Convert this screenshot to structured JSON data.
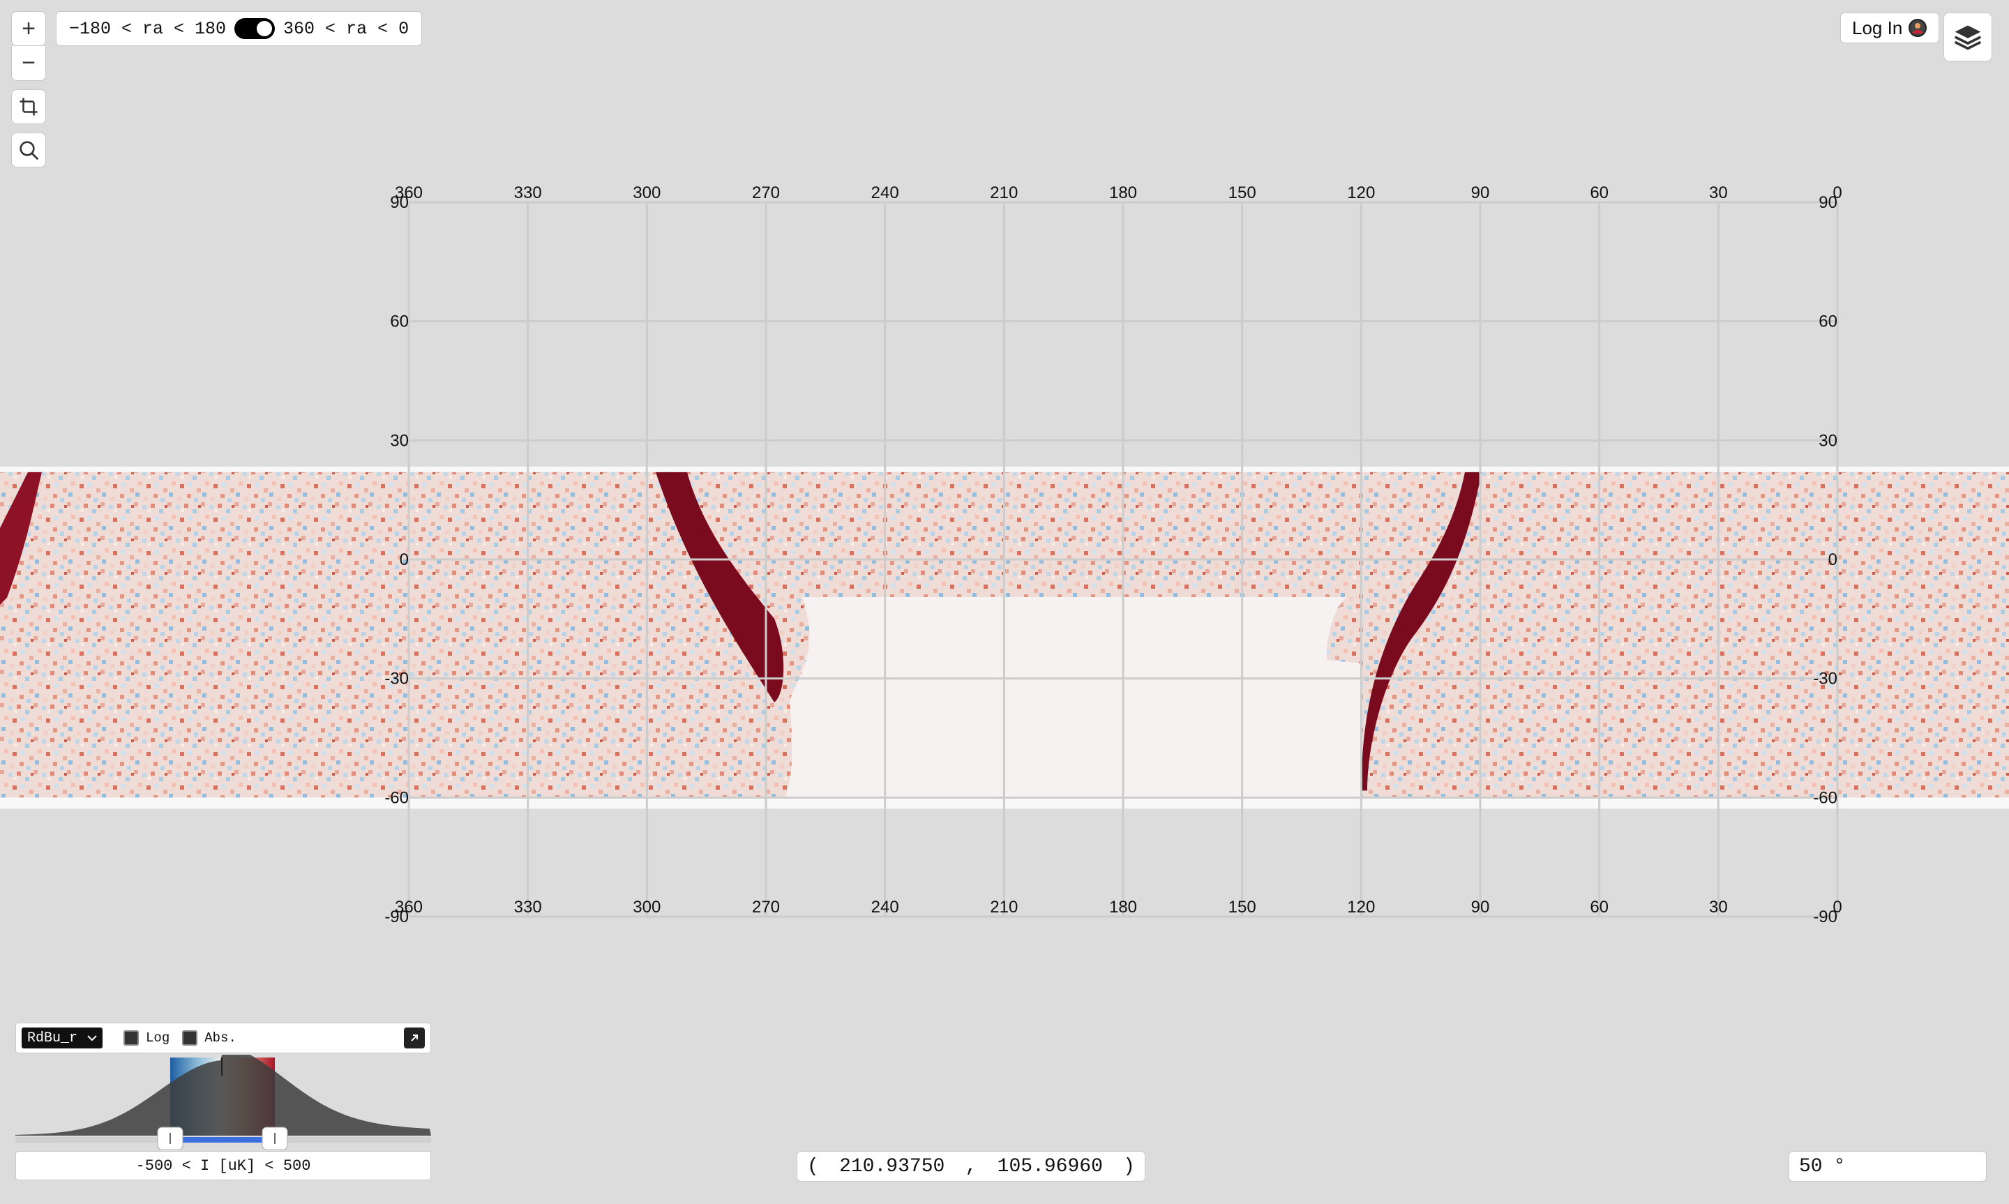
{
  "controls": {
    "zoom_in": "+",
    "zoom_out": "−"
  },
  "ra_toggle": {
    "left_label": "−180 < ra < 180",
    "right_label": "360 < ra < 0",
    "state": "on"
  },
  "login": {
    "label": "Log In"
  },
  "grid": {
    "ra_ticks": [
      "360",
      "330",
      "300",
      "270",
      "240",
      "210",
      "180",
      "150",
      "120",
      "90",
      "60",
      "30",
      "0"
    ],
    "dec_ticks": [
      "90",
      "60",
      "30",
      "0",
      "-30",
      "-60",
      "-90"
    ],
    "line_color": "#cccccc"
  },
  "map": {
    "colormap": "RdBu_r",
    "blank_fill": "#f6f2f2",
    "stripe_dec_range": [
      -60,
      22
    ]
  },
  "colormap_panel": {
    "selected": "RdBu_r",
    "log_label": "Log",
    "abs_label": "Abs.",
    "log_checked": false,
    "abs_checked": false
  },
  "range": {
    "label": "-500 < I [uK] < 500",
    "min": -500,
    "max": 500
  },
  "coordinates": {
    "open": "(",
    "ra": "210.93750",
    "sep": ",",
    "dec": "105.96960",
    "close": ")"
  },
  "zoom": {
    "value": "50",
    "unit": "°"
  }
}
